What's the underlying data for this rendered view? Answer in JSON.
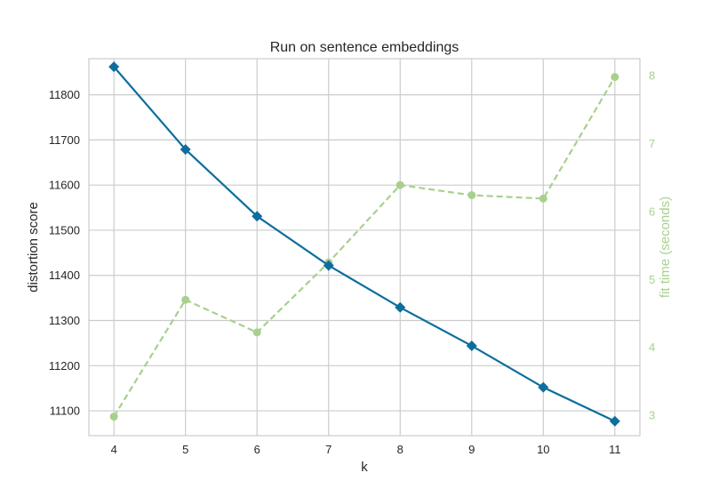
{
  "chart_data": {
    "type": "line",
    "title": "Run on sentence embeddings",
    "xlabel": "k",
    "ylabel": "distortion score",
    "y2label": "fit time (seconds)",
    "x": [
      4,
      5,
      6,
      7,
      8,
      9,
      10,
      11
    ],
    "xlim": [
      3.65,
      11.35
    ],
    "ylim": [
      11045,
      11880
    ],
    "y2lim": [
      2.7,
      8.25
    ],
    "yticks": [
      11100,
      11200,
      11300,
      11400,
      11500,
      11600,
      11700,
      11800
    ],
    "y2ticks": [
      3,
      4,
      5,
      6,
      7,
      8
    ],
    "grid": true,
    "series": [
      {
        "name": "distortion score",
        "axis": "left",
        "color": "#0d6e9e",
        "marker": "diamond",
        "values": [
          11862,
          11679,
          11531,
          11422,
          11329,
          11244,
          11152,
          11077
        ]
      },
      {
        "name": "fit time (seconds)",
        "axis": "right",
        "color": "#a8d08d",
        "marker": "circle",
        "dashed": true,
        "values": [
          2.98,
          4.7,
          4.22,
          5.25,
          6.39,
          6.24,
          6.19,
          7.98
        ]
      }
    ]
  }
}
